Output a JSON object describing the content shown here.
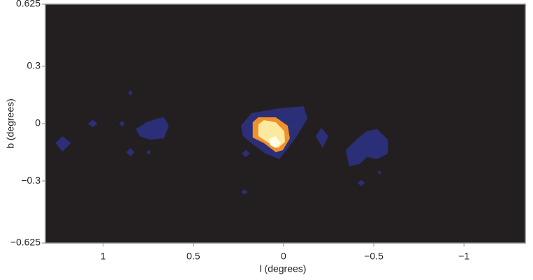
{
  "chart_data": {
    "type": "contour",
    "xlabel": "l (degrees)",
    "ylabel": "b (degrees)",
    "xlim": [
      1.32,
      -1.34
    ],
    "ylim": [
      -0.625,
      0.625
    ],
    "xticks": [
      1,
      0.5,
      0,
      {
        "value": -0.5,
        "label": "−0.5"
      },
      {
        "value": -1,
        "label": "−1"
      }
    ],
    "yticks": [
      0.625,
      0.3,
      0,
      {
        "value": -0.3,
        "label": "−0.3"
      },
      {
        "value": -0.625,
        "label": "−0.625"
      }
    ],
    "background": "#231f20",
    "contours": [
      {
        "color": "#2b2f78",
        "l": [
          0.236,
          0.178,
          0.023,
          -0.112,
          -0.132,
          -0.074,
          -0.016,
          0.023,
          0.101,
          0.178,
          0.225
        ],
        "b": [
          -0.011,
          0.055,
          0.08,
          0.091,
          0.026,
          -0.066,
          -0.139,
          -0.186,
          -0.157,
          -0.102,
          -0.066
        ]
      },
      {
        "color": "#2b2f78",
        "l": [
          0.818,
          0.76,
          0.702,
          0.663,
          0.636,
          0.663,
          0.74,
          0.798
        ],
        "b": [
          -0.029,
          0.007,
          0.026,
          0.033,
          -0.011,
          -0.077,
          -0.084,
          -0.066
        ]
      },
      {
        "color": "#2b2f78",
        "l": [
          1.264,
          1.225,
          1.178,
          1.225
        ],
        "b": [
          -0.102,
          -0.066,
          -0.102,
          -0.146
        ]
      },
      {
        "color": "#2b2f78",
        "l": [
          1.085,
          1.058,
          1.031,
          1.058
        ],
        "b": [
          0.0,
          0.02,
          0.0,
          -0.02
        ]
      },
      {
        "color": "#2b2f78",
        "l": [
          -0.345,
          -0.403,
          -0.461,
          -0.519,
          -0.578,
          -0.578,
          -0.519,
          -0.461,
          -0.422,
          -0.364
        ],
        "b": [
          -0.139,
          -0.084,
          -0.04,
          -0.029,
          -0.084,
          -0.157,
          -0.186,
          -0.175,
          -0.212,
          -0.223
        ]
      },
      {
        "color": "#2b2f78",
        "l": [
          -0.178,
          -0.209,
          -0.248,
          -0.217
        ],
        "b": [
          -0.066,
          -0.022,
          -0.066,
          -0.128
        ]
      },
      {
        "color": "#2b2f78",
        "l": [
          0.86,
          0.849,
          0.838,
          0.849
        ],
        "b": [
          0.161,
          0.175,
          0.161,
          0.147
        ]
      },
      {
        "color": "#2b2f78",
        "l": [
          0.91,
          0.895,
          0.88,
          0.895
        ],
        "b": [
          0.0,
          0.015,
          0.0,
          -0.015
        ]
      },
      {
        "color": "#2b2f78",
        "l": [
          0.872,
          0.849,
          0.826,
          0.849
        ],
        "b": [
          -0.15,
          -0.128,
          -0.15,
          -0.172
        ]
      },
      {
        "color": "#2b2f78",
        "l": [
          0.76,
          0.748,
          0.736,
          0.748
        ],
        "b": [
          -0.15,
          -0.138,
          -0.15,
          -0.162
        ]
      },
      {
        "color": "#2b2f78",
        "l": [
          0.232,
          0.209,
          0.186,
          0.209
        ],
        "b": [
          -0.157,
          -0.138,
          -0.157,
          -0.176
        ]
      },
      {
        "color": "#2b2f78",
        "l": [
          0.235,
          0.217,
          0.199,
          0.217
        ],
        "b": [
          -0.358,
          -0.344,
          -0.358,
          -0.372
        ]
      },
      {
        "color": "#2b2f78",
        "l": [
          -0.41,
          -0.43,
          -0.45,
          -0.43
        ],
        "b": [
          -0.311,
          -0.295,
          -0.311,
          -0.327
        ]
      },
      {
        "color": "#2b2f78",
        "l": [
          -0.52,
          -0.531,
          -0.542,
          -0.531
        ],
        "b": [
          -0.256,
          -0.246,
          -0.256,
          -0.266
        ]
      },
      {
        "color": "#f0902a",
        "l": [
          0.171,
          0.14,
          0.043,
          -0.023,
          -0.035,
          0.004,
          0.043,
          0.109,
          0.171
        ],
        "b": [
          0.007,
          0.033,
          0.033,
          -0.011,
          -0.077,
          -0.139,
          -0.15,
          -0.102,
          -0.073
        ]
      },
      {
        "color": "#fbe9a0",
        "l": [
          0.14,
          0.109,
          0.043,
          -0.004,
          -0.008,
          0.031,
          0.081,
          0.14
        ],
        "b": [
          -0.004,
          0.018,
          0.007,
          -0.04,
          -0.095,
          -0.128,
          -0.102,
          -0.066
        ]
      },
      {
        "color": "#fffde6",
        "l": [
          0.081,
          0.043,
          0.016,
          0.043,
          0.074
        ],
        "b": [
          -0.077,
          -0.066,
          -0.102,
          -0.128,
          -0.113
        ]
      }
    ]
  }
}
